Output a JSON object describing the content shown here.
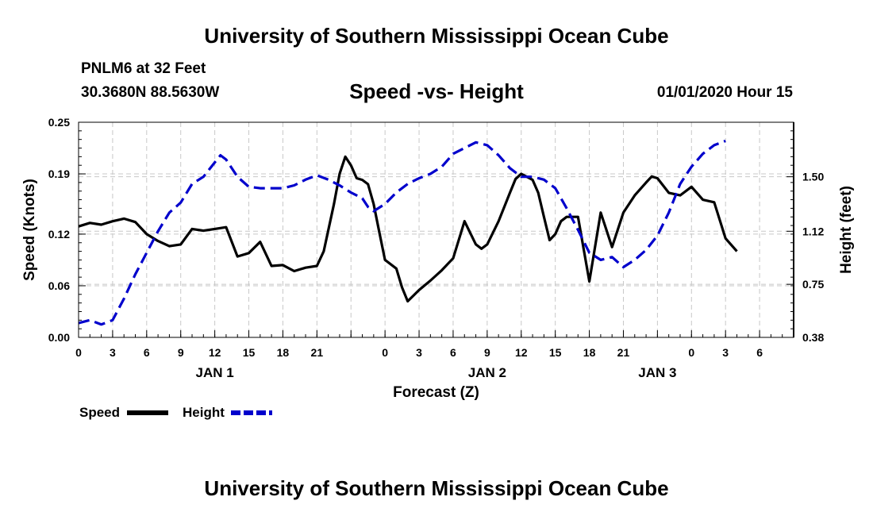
{
  "header": {
    "title": "University of Southern Mississippi Ocean Cube",
    "station": "PNLM6 at 32 Feet",
    "coords": "30.3680N 88.5630W",
    "subtitle": "Speed -vs- Height",
    "datetime": "01/01/2020 Hour 15"
  },
  "footer": {
    "title": "University of Southern Mississippi Ocean Cube"
  },
  "chart_data": {
    "type": "line",
    "xlabel": "Forecast (Z)",
    "ylabel_left": "Speed (Knots)",
    "ylabel_right": "Height (feet)",
    "x_range_hours": [
      0,
      63
    ],
    "x_ticks": [
      {
        "h": 0,
        "label": "0"
      },
      {
        "h": 3,
        "label": "3"
      },
      {
        "h": 6,
        "label": "6"
      },
      {
        "h": 9,
        "label": "9"
      },
      {
        "h": 12,
        "label": "12"
      },
      {
        "h": 15,
        "label": "15"
      },
      {
        "h": 18,
        "label": "18"
      },
      {
        "h": 21,
        "label": "21"
      },
      {
        "h": 24,
        "label": ""
      },
      {
        "h": 27,
        "label": "0"
      },
      {
        "h": 30,
        "label": "3"
      },
      {
        "h": 33,
        "label": "6"
      },
      {
        "h": 36,
        "label": "9"
      },
      {
        "h": 39,
        "label": "12"
      },
      {
        "h": 42,
        "label": "15"
      },
      {
        "h": 45,
        "label": "18"
      },
      {
        "h": 48,
        "label": "21"
      },
      {
        "h": 51,
        "label": ""
      },
      {
        "h": 54,
        "label": "0"
      },
      {
        "h": 57,
        "label": "3"
      },
      {
        "h": 60,
        "label": "6"
      }
    ],
    "date_labels": [
      {
        "h": 12,
        "label": "JAN 1"
      },
      {
        "h": 36,
        "label": "JAN 2"
      },
      {
        "h": 51,
        "label": "JAN 3"
      }
    ],
    "y_left": {
      "min": 0,
      "max": 0.25,
      "ticks": [
        "0.00",
        "0.06",
        "0.12",
        "0.19",
        "0.25"
      ]
    },
    "y_right": {
      "min": 0.38,
      "max": 1.88,
      "ticks": [
        "0.38",
        "0.75",
        "1.12",
        "1.50"
      ]
    },
    "grid": true,
    "legend": {
      "position": "bottom-left",
      "speed_label": "Speed",
      "height_label": "Height"
    },
    "series": [
      {
        "name": "Speed",
        "axis": "left",
        "color": "#000000",
        "style": "solid",
        "values": [
          [
            0,
            0.129
          ],
          [
            1,
            0.133
          ],
          [
            2,
            0.131
          ],
          [
            3,
            0.135
          ],
          [
            4,
            0.138
          ],
          [
            5,
            0.134
          ],
          [
            6,
            0.12
          ],
          [
            7,
            0.112
          ],
          [
            8,
            0.106
          ],
          [
            9,
            0.108
          ],
          [
            10,
            0.126
          ],
          [
            11,
            0.124
          ],
          [
            12,
            0.126
          ],
          [
            13,
            0.128
          ],
          [
            14,
            0.094
          ],
          [
            15,
            0.098
          ],
          [
            16,
            0.111
          ],
          [
            17,
            0.083
          ],
          [
            18,
            0.084
          ],
          [
            19,
            0.077
          ],
          [
            20,
            0.081
          ],
          [
            21,
            0.083
          ],
          [
            21.6,
            0.1
          ],
          [
            22.5,
            0.155
          ],
          [
            23,
            0.19
          ],
          [
            23.5,
            0.21
          ],
          [
            24,
            0.2
          ],
          [
            24.5,
            0.185
          ],
          [
            25,
            0.183
          ],
          [
            25.5,
            0.178
          ],
          [
            26,
            0.155
          ],
          [
            26.5,
            0.122
          ],
          [
            27,
            0.09
          ],
          [
            28,
            0.08
          ],
          [
            28.5,
            0.058
          ],
          [
            29,
            0.042
          ],
          [
            30,
            0.055
          ],
          [
            31,
            0.066
          ],
          [
            32,
            0.078
          ],
          [
            33,
            0.092
          ],
          [
            34,
            0.135
          ],
          [
            35,
            0.108
          ],
          [
            35.5,
            0.103
          ],
          [
            36,
            0.108
          ],
          [
            37,
            0.135
          ],
          [
            38,
            0.168
          ],
          [
            38.5,
            0.184
          ],
          [
            39,
            0.19
          ],
          [
            40,
            0.183
          ],
          [
            40.5,
            0.168
          ],
          [
            41,
            0.14
          ],
          [
            41.5,
            0.113
          ],
          [
            42,
            0.12
          ],
          [
            42.5,
            0.135
          ],
          [
            43,
            0.14
          ],
          [
            44,
            0.14
          ],
          [
            45,
            0.065
          ],
          [
            46,
            0.145
          ],
          [
            47,
            0.105
          ],
          [
            48,
            0.145
          ],
          [
            49,
            0.165
          ],
          [
            50,
            0.18
          ],
          [
            50.5,
            0.187
          ],
          [
            51,
            0.185
          ],
          [
            52,
            0.168
          ],
          [
            53,
            0.165
          ],
          [
            54,
            0.175
          ],
          [
            55,
            0.16
          ],
          [
            56,
            0.157
          ],
          [
            57,
            0.115
          ],
          [
            58,
            0.1
          ]
        ]
      },
      {
        "name": "Height",
        "axis": "right",
        "color": "#0000cc",
        "style": "dashed",
        "values": [
          [
            0,
            0.48
          ],
          [
            1,
            0.5
          ],
          [
            2,
            0.47
          ],
          [
            3,
            0.5
          ],
          [
            4,
            0.65
          ],
          [
            5,
            0.82
          ],
          [
            6,
            0.97
          ],
          [
            7,
            1.12
          ],
          [
            8,
            1.25
          ],
          [
            9,
            1.32
          ],
          [
            10,
            1.45
          ],
          [
            11,
            1.5
          ],
          [
            12,
            1.6
          ],
          [
            12.5,
            1.65
          ],
          [
            13,
            1.62
          ],
          [
            14,
            1.5
          ],
          [
            15,
            1.43
          ],
          [
            16,
            1.42
          ],
          [
            17,
            1.42
          ],
          [
            18,
            1.42
          ],
          [
            19,
            1.44
          ],
          [
            20,
            1.48
          ],
          [
            21,
            1.51
          ],
          [
            22,
            1.48
          ],
          [
            23,
            1.44
          ],
          [
            24,
            1.39
          ],
          [
            25,
            1.35
          ],
          [
            25.5,
            1.29
          ],
          [
            26,
            1.26
          ],
          [
            27,
            1.31
          ],
          [
            28,
            1.39
          ],
          [
            29,
            1.45
          ],
          [
            30,
            1.49
          ],
          [
            31,
            1.52
          ],
          [
            32,
            1.57
          ],
          [
            33,
            1.66
          ],
          [
            34,
            1.7
          ],
          [
            35,
            1.74
          ],
          [
            36,
            1.72
          ],
          [
            37,
            1.65
          ],
          [
            38,
            1.56
          ],
          [
            39,
            1.5
          ],
          [
            40,
            1.5
          ],
          [
            41,
            1.48
          ],
          [
            42,
            1.42
          ],
          [
            43,
            1.28
          ],
          [
            44,
            1.13
          ],
          [
            45,
            0.97
          ],
          [
            46,
            0.92
          ],
          [
            47,
            0.94
          ],
          [
            48,
            0.87
          ],
          [
            49,
            0.92
          ],
          [
            50,
            0.99
          ],
          [
            51,
            1.09
          ],
          [
            52,
            1.25
          ],
          [
            53,
            1.45
          ],
          [
            54,
            1.57
          ],
          [
            55,
            1.66
          ],
          [
            56,
            1.72
          ],
          [
            57,
            1.75
          ]
        ]
      }
    ]
  }
}
